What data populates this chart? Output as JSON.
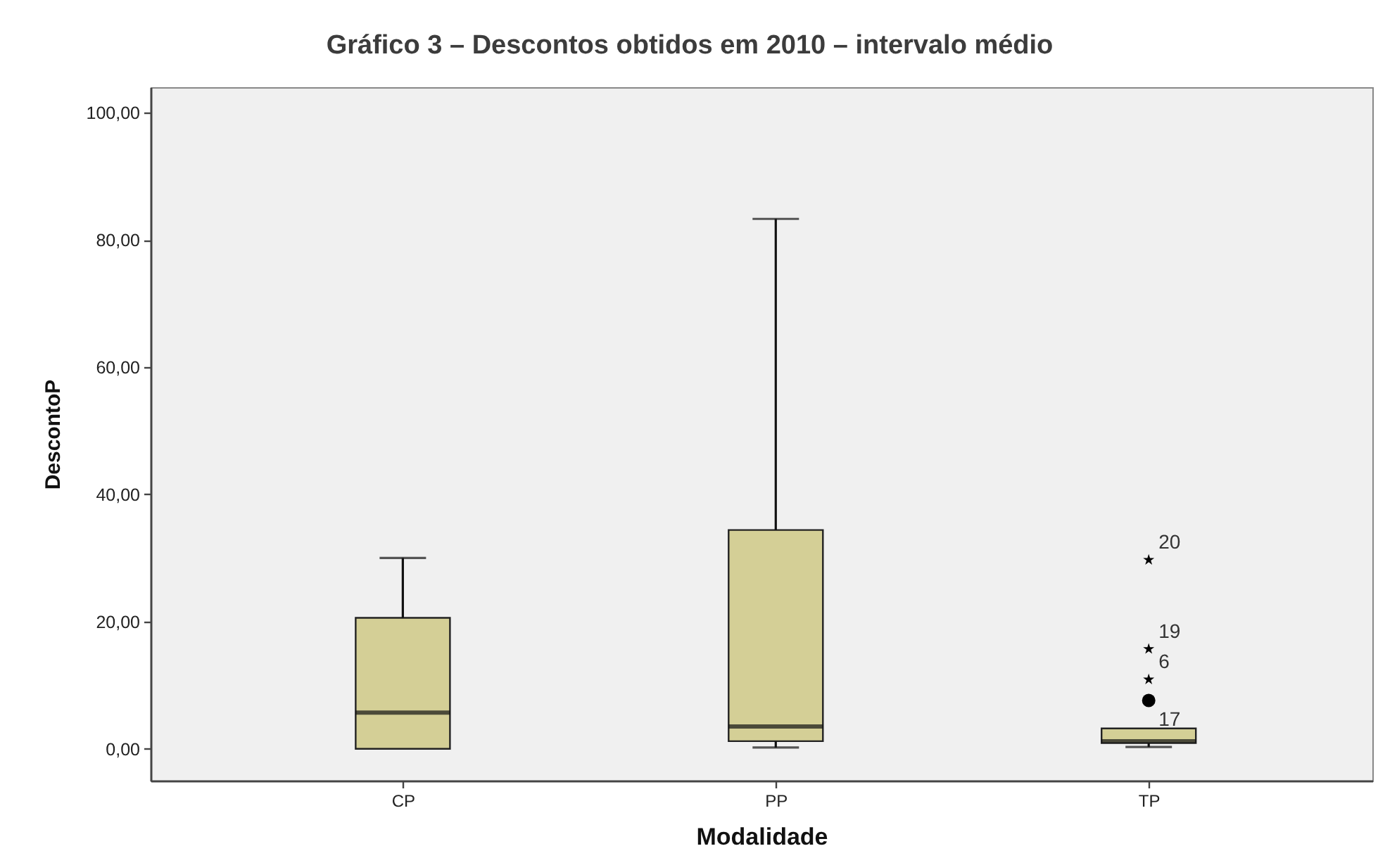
{
  "chart_data": {
    "type": "box",
    "title": "Gráfico 3 – Descontos obtidos em 2010 – intervalo médio",
    "xlabel": "Modalidade",
    "ylabel": "DescontoP",
    "categories": [
      "CP",
      "PP",
      "TP"
    ],
    "ylim": [
      -5,
      104
    ],
    "yticks": [
      {
        "value": 0,
        "label": "0,00"
      },
      {
        "value": 20,
        "label": "20,00"
      },
      {
        "value": 40,
        "label": "40,00"
      },
      {
        "value": 60,
        "label": "60,00"
      },
      {
        "value": 80,
        "label": "80,00"
      },
      {
        "value": 100,
        "label": "100,00"
      }
    ],
    "series": [
      {
        "type": "box",
        "color": "#d4cf96",
        "boxes": [
          {
            "low": 0,
            "q1": 0,
            "median": 5.7,
            "q3": 20.6,
            "high": 30
          },
          {
            "low": 0.2,
            "q1": 1.2,
            "median": 3.5,
            "q3": 34.4,
            "high": 83.3
          },
          {
            "low": 0.3,
            "q1": 0.9,
            "median": 1.2,
            "q3": 3.2,
            "high": 3.2
          }
        ]
      },
      {
        "type": "scatter",
        "color": "#000000",
        "marker": "star",
        "x": [
          "TP",
          "TP",
          "TP"
        ],
        "values": [
          29.7,
          15.7,
          10.9
        ]
      },
      {
        "type": "scatter",
        "color": "#000000",
        "marker": "circle",
        "x": [
          "TP"
        ],
        "values": [
          7.6
        ]
      }
    ],
    "annotations": [
      {
        "text": "20",
        "x": "TP",
        "y": 29.7
      },
      {
        "text": "19",
        "x": "TP",
        "y": 15.7
      },
      {
        "text": "6",
        "x": "TP",
        "y": 10.9
      },
      {
        "text": "17",
        "x": "TP",
        "y": 7.6
      }
    ]
  }
}
